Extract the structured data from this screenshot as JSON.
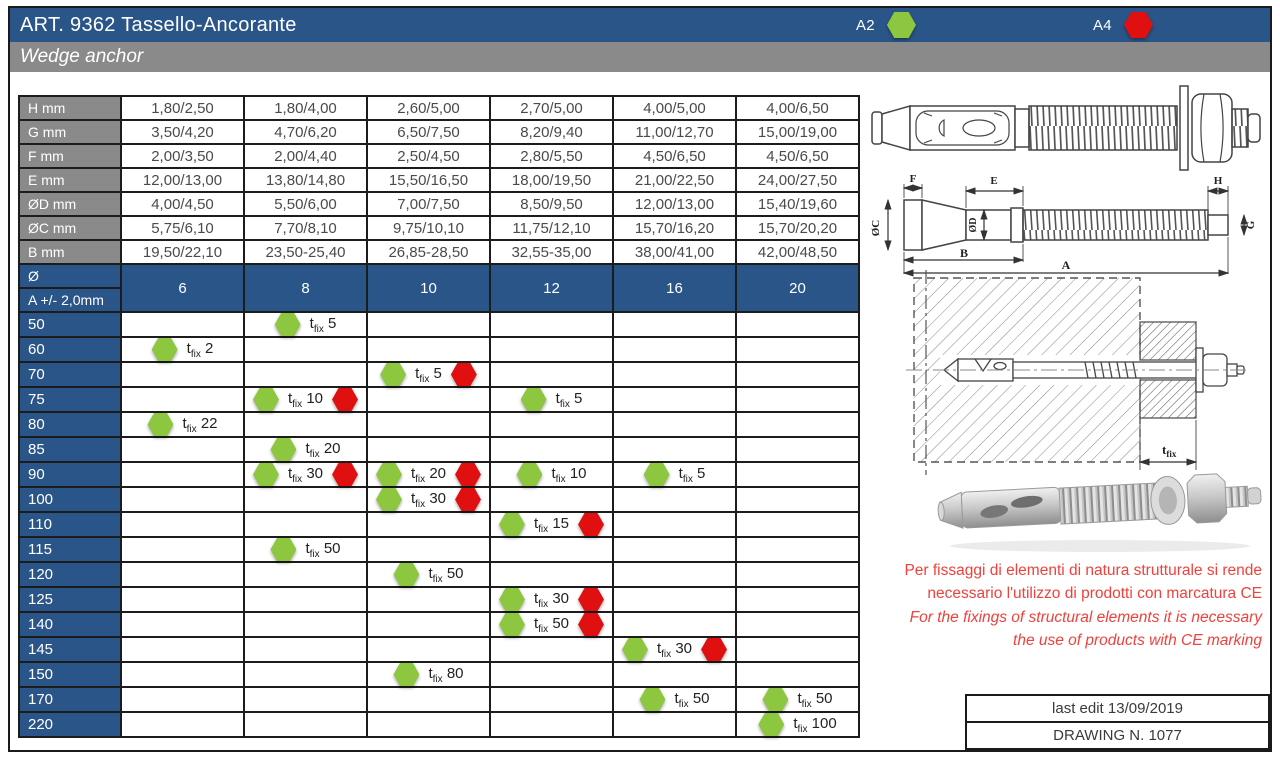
{
  "title_bar": {
    "title": "ART. 9362 Tassello-Ancorante",
    "legend": {
      "a2_label": "A2",
      "a4_label": "A4"
    }
  },
  "subtitle": "Wedge anchor",
  "colors": {
    "header_blue": "#2a5588",
    "bar_gray": "#8a8a8a",
    "a2_green": "#8dc63f",
    "a4_red": "#e01010",
    "note_red": "#f0413c"
  },
  "dimension_table": {
    "rows": [
      {
        "label": "H mm",
        "values": [
          "1,80/2,50",
          "1,80/4,00",
          "2,60/5,00",
          "2,70/5,00",
          "4,00/5,00",
          "4,00/6,50"
        ]
      },
      {
        "label": "G mm",
        "values": [
          "3,50/4,20",
          "4,70/6,20",
          "6,50/7,50",
          "8,20/9,40",
          "11,00/12,70",
          "15,00/19,00"
        ]
      },
      {
        "label": "F mm",
        "values": [
          "2,00/3,50",
          "2,00/4,40",
          "2,50/4,50",
          "2,80/5,50",
          "4,50/6,50",
          "4,50/6,50"
        ]
      },
      {
        "label": "E mm",
        "values": [
          "12,00/13,00",
          "13,80/14,80",
          "15,50/16,50",
          "18,00/19,50",
          "21,00/22,50",
          "24,00/27,50"
        ]
      },
      {
        "label": "ØD mm",
        "values": [
          "4,00/4,50",
          "5,50/6,00",
          "7,00/7,50",
          "8,50/9,50",
          "12,00/13,00",
          "15,40/19,60"
        ]
      },
      {
        "label": "ØC mm",
        "values": [
          "5,75/6,10",
          "7,70/8,10",
          "9,75/10,10",
          "11,75/12,10",
          "15,70/16,20",
          "15,70/20,20"
        ]
      },
      {
        "label": "B mm",
        "values": [
          "19,50/22,10",
          "23,50-25,40",
          "26,85-28,50",
          "32,55-35,00",
          "38,00/41,00",
          "42,00/48,50"
        ]
      }
    ]
  },
  "matrix": {
    "diameter_label": "Ø",
    "a_label": "A +/- 2,0mm",
    "columns": [
      "6",
      "8",
      "10",
      "12",
      "16",
      "20"
    ],
    "tfix_t": "t",
    "tfix_sub": "fix",
    "rows": [
      {
        "a": "50",
        "cells": [
          null,
          {
            "tfix": "5",
            "a4": false
          },
          null,
          null,
          null,
          null
        ]
      },
      {
        "a": "60",
        "cells": [
          {
            "tfix": "2",
            "a4": false
          },
          null,
          null,
          null,
          null,
          null
        ]
      },
      {
        "a": "70",
        "cells": [
          null,
          null,
          {
            "tfix": "5",
            "a4": true
          },
          null,
          null,
          null
        ]
      },
      {
        "a": "75",
        "cells": [
          null,
          {
            "tfix": "10",
            "a4": true
          },
          null,
          {
            "tfix": "5",
            "a4": false
          },
          null,
          null
        ]
      },
      {
        "a": "80",
        "cells": [
          {
            "tfix": "22",
            "a4": false
          },
          null,
          null,
          null,
          null,
          null
        ]
      },
      {
        "a": "85",
        "cells": [
          null,
          {
            "tfix": "20",
            "a4": false
          },
          null,
          null,
          null,
          null
        ]
      },
      {
        "a": "90",
        "cells": [
          null,
          {
            "tfix": "30",
            "a4": true
          },
          {
            "tfix": "20",
            "a4": true
          },
          {
            "tfix": "10",
            "a4": false
          },
          {
            "tfix": "5",
            "a4": false
          },
          null
        ]
      },
      {
        "a": "100",
        "cells": [
          null,
          null,
          {
            "tfix": "30",
            "a4": true
          },
          null,
          null,
          null
        ]
      },
      {
        "a": "110",
        "cells": [
          null,
          null,
          null,
          {
            "tfix": "15",
            "a4": true
          },
          null,
          null
        ]
      },
      {
        "a": "115",
        "cells": [
          null,
          {
            "tfix": "50",
            "a4": false
          },
          null,
          null,
          null,
          null
        ]
      },
      {
        "a": "120",
        "cells": [
          null,
          null,
          {
            "tfix": "50",
            "a4": false
          },
          null,
          null,
          null
        ]
      },
      {
        "a": "125",
        "cells": [
          null,
          null,
          null,
          {
            "tfix": "30",
            "a4": true
          },
          null,
          null
        ]
      },
      {
        "a": "140",
        "cells": [
          null,
          null,
          null,
          {
            "tfix": "50",
            "a4": true
          },
          null,
          null
        ]
      },
      {
        "a": "145",
        "cells": [
          null,
          null,
          null,
          null,
          {
            "tfix": "30",
            "a4": true
          },
          null
        ]
      },
      {
        "a": "150",
        "cells": [
          null,
          null,
          {
            "tfix": "80",
            "a4": false
          },
          null,
          null,
          null
        ]
      },
      {
        "a": "170",
        "cells": [
          null,
          null,
          null,
          null,
          {
            "tfix": "50",
            "a4": false
          },
          {
            "tfix": "50",
            "a4": false
          }
        ]
      },
      {
        "a": "220",
        "cells": [
          null,
          null,
          null,
          null,
          null,
          {
            "tfix": "100",
            "a4": false
          }
        ]
      }
    ]
  },
  "drawings": {
    "dimension_view": {
      "labels": {
        "f": "F",
        "e": "E",
        "h": "H",
        "oc": "ØC",
        "od": "ØD",
        "g": "G",
        "b": "B",
        "a": "A"
      }
    },
    "cross_section": {
      "tfix_t": "t",
      "tfix_sub": "fix"
    }
  },
  "note": {
    "it1": "Per fissaggi di elementi di natura strutturale si rende",
    "it2": "necessario l'utilizzo di prodotti con marcatura CE",
    "en1": "For the fixings of structural elements it is necessary",
    "en2": "the use of products with CE marking"
  },
  "footer_box": {
    "last_edit": "last edit 13/09/2019",
    "drawing_no": "DRAWING N. 1077"
  }
}
